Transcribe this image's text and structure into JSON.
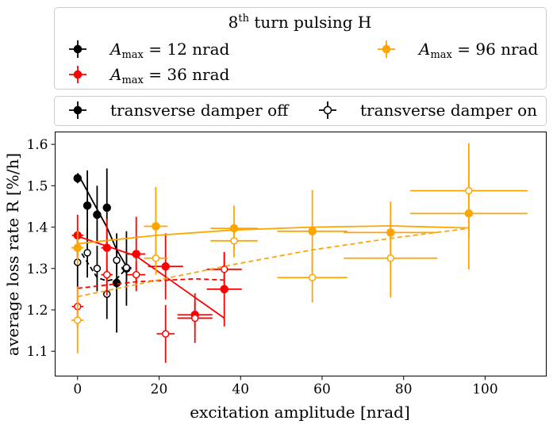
{
  "chart_data": {
    "type": "scatter",
    "xlabel": "excitation amplitude [nrad]",
    "ylabel": "average loss rate R [%/h]",
    "xlim": [
      -5.5,
      115
    ],
    "ylim": [
      1.04,
      1.63
    ],
    "xticks": [
      0,
      20,
      40,
      60,
      80,
      100
    ],
    "yticks": [
      1.1,
      1.2,
      1.3,
      1.4,
      1.5,
      1.6
    ],
    "tick_labels_x": [
      "0",
      "20",
      "40",
      "60",
      "80",
      "100"
    ],
    "tick_labels_y": [
      "1.1",
      "1.2",
      "1.3",
      "1.4",
      "1.5",
      "1.6"
    ],
    "legend_amplitude": {
      "title": "8th turn pulsing H",
      "title_base": "8",
      "title_sup": "th",
      "title_rest": " turn pulsing H",
      "entries": [
        {
          "symbol": "A",
          "sub": "max",
          "text": " = 12 nrad",
          "color": "#000000"
        },
        {
          "symbol": "A",
          "sub": "max",
          "text": " = 36 nrad",
          "color": "#ff0000"
        },
        {
          "symbol": "A",
          "sub": "max",
          "text": " = 96 nrad",
          "color": "#ffa500"
        }
      ]
    },
    "legend_damper": {
      "entries": [
        {
          "label": "transverse damper off",
          "filled": true
        },
        {
          "label": "transverse damper on",
          "filled": false
        }
      ]
    },
    "series": [
      {
        "amax": 12,
        "damper": "off",
        "color": "#000000",
        "filled": true,
        "linestyle": "solid",
        "points": [
          {
            "x": 0,
            "y": 1.518,
            "xerr": 0.6,
            "yerr": 0.012
          },
          {
            "x": 2.4,
            "y": 1.452,
            "xerr": 0.6,
            "yerr": 0.085
          },
          {
            "x": 4.8,
            "y": 1.43,
            "xerr": 0.6,
            "yerr": 0.07
          },
          {
            "x": 7.2,
            "y": 1.447,
            "xerr": 0.6,
            "yerr": 0.095
          },
          {
            "x": 9.6,
            "y": 1.265,
            "xerr": 0.6,
            "yerr": 0.12
          },
          {
            "x": 12.0,
            "y": 1.3,
            "xerr": 1.2,
            "yerr": 0.09
          }
        ],
        "line": [
          [
            0,
            1.53
          ],
          [
            7.2,
            1.4
          ],
          [
            9.6,
            1.345
          ],
          [
            12.0,
            1.305
          ]
        ]
      },
      {
        "amax": 12,
        "damper": "on",
        "color": "#000000",
        "filled": false,
        "linestyle": "dashed",
        "points": [
          {
            "x": 0,
            "y": 1.315,
            "xerr": 0.6,
            "yerr": 0.06
          },
          {
            "x": 2.4,
            "y": 1.338,
            "xerr": 0.6,
            "yerr": 0.06
          },
          {
            "x": 4.8,
            "y": 1.3,
            "xerr": 0.6,
            "yerr": 0.055
          },
          {
            "x": 7.2,
            "y": 1.238,
            "xerr": 0.6,
            "yerr": 0.06
          },
          {
            "x": 9.6,
            "y": 1.32,
            "xerr": 0.6,
            "yerr": 0.03
          },
          {
            "x": 12.0,
            "y": 1.302,
            "xerr": 1.2,
            "yerr": 0.03
          }
        ],
        "line": [
          [
            0,
            1.352
          ],
          [
            4.8,
            1.278
          ],
          [
            7.2,
            1.27
          ],
          [
            9.6,
            1.275
          ],
          [
            12.0,
            1.3
          ]
        ]
      },
      {
        "amax": 36,
        "damper": "off",
        "color": "#ff0000",
        "filled": true,
        "linestyle": "solid",
        "points": [
          {
            "x": 0,
            "y": 1.38,
            "xerr": 1.4,
            "yerr": 0.05
          },
          {
            "x": 7.2,
            "y": 1.35,
            "xerr": 1.4,
            "yerr": 0.07
          },
          {
            "x": 14.4,
            "y": 1.335,
            "xerr": 2.2,
            "yerr": 0.09
          },
          {
            "x": 21.6,
            "y": 1.305,
            "xerr": 4.3,
            "yerr": 0.08
          },
          {
            "x": 28.8,
            "y": 1.188,
            "xerr": 4.3,
            "yerr": 0.03
          },
          {
            "x": 36.0,
            "y": 1.25,
            "xerr": 4.3,
            "yerr": 0.09
          }
        ],
        "line": [
          [
            0,
            1.378
          ],
          [
            14.4,
            1.33
          ],
          [
            21.6,
            1.28
          ],
          [
            36.0,
            1.18
          ]
        ]
      },
      {
        "amax": 36,
        "damper": "on",
        "color": "#ff0000",
        "filled": false,
        "linestyle": "dashed",
        "points": [
          {
            "x": 0,
            "y": 1.208,
            "xerr": 1.4,
            "yerr": 0.05
          },
          {
            "x": 7.2,
            "y": 1.285,
            "xerr": 1.4,
            "yerr": 0.05
          },
          {
            "x": 14.4,
            "y": 1.285,
            "xerr": 2.2,
            "yerr": 0.03
          },
          {
            "x": 21.6,
            "y": 1.142,
            "xerr": 2.2,
            "yerr": 0.07
          },
          {
            "x": 28.8,
            "y": 1.18,
            "xerr": 4.3,
            "yerr": 0.06
          },
          {
            "x": 36.0,
            "y": 1.298,
            "xerr": 4.3,
            "yerr": 0.04
          }
        ],
        "line": [
          [
            0,
            1.252
          ],
          [
            14.4,
            1.268
          ],
          [
            28.8,
            1.275
          ],
          [
            36.0,
            1.272
          ]
        ]
      },
      {
        "amax": 96,
        "damper": "off",
        "color": "#ffa500",
        "filled": true,
        "linestyle": "solid",
        "points": [
          {
            "x": 0,
            "y": 1.35,
            "xerr": 1.5,
            "yerr": 0.04
          },
          {
            "x": 19.2,
            "y": 1.402,
            "xerr": 2.9,
            "yerr": 0.095
          },
          {
            "x": 38.4,
            "y": 1.397,
            "xerr": 5.8,
            "yerr": 0.055
          },
          {
            "x": 57.6,
            "y": 1.39,
            "xerr": 8.6,
            "yerr": 0.1
          },
          {
            "x": 76.8,
            "y": 1.387,
            "xerr": 11.5,
            "yerr": 0.075
          },
          {
            "x": 96.0,
            "y": 1.433,
            "xerr": 14.4,
            "yerr": 0.135
          }
        ],
        "line": [
          [
            0,
            1.36
          ],
          [
            19.2,
            1.38
          ],
          [
            38.4,
            1.393
          ],
          [
            57.6,
            1.4
          ],
          [
            76.8,
            1.403
          ],
          [
            96.0,
            1.398
          ]
        ]
      },
      {
        "amax": 96,
        "damper": "on",
        "color": "#ffa500",
        "filled": false,
        "linestyle": "dashed",
        "points": [
          {
            "x": 0,
            "y": 1.175,
            "xerr": 1.5,
            "yerr": 0.08
          },
          {
            "x": 19.2,
            "y": 1.325,
            "xerr": 2.9,
            "yerr": 0.04
          },
          {
            "x": 38.4,
            "y": 1.367,
            "xerr": 5.8,
            "yerr": 0.04
          },
          {
            "x": 57.6,
            "y": 1.278,
            "xerr": 8.6,
            "yerr": 0.06
          },
          {
            "x": 76.8,
            "y": 1.325,
            "xerr": 11.5,
            "yerr": 0.095
          },
          {
            "x": 96.0,
            "y": 1.488,
            "xerr": 14.4,
            "yerr": 0.115
          }
        ],
        "line": [
          [
            0,
            1.232
          ],
          [
            38.4,
            1.31
          ],
          [
            57.6,
            1.345
          ],
          [
            76.8,
            1.373
          ],
          [
            96.0,
            1.397
          ]
        ]
      }
    ]
  }
}
